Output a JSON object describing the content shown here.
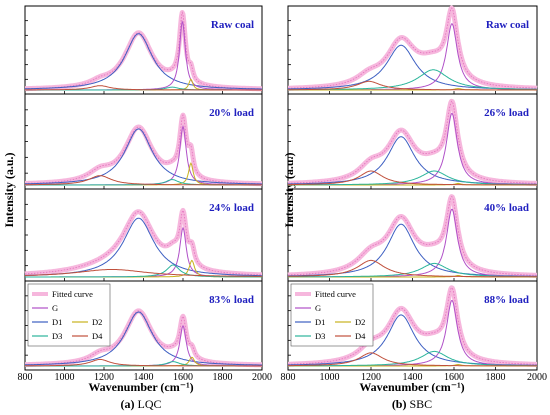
{
  "colors": {
    "fitted": "#f6b7dd",
    "fitted_line": "#e46fbd",
    "G": "#b050c8",
    "D1": "#3d5fc2",
    "D2": "#c7b21e",
    "D3": "#2bb59b",
    "D4": "#c0503c",
    "label": "#1f1fbf"
  },
  "chart_data": [
    {
      "type": "line",
      "caption_letter": "(a)",
      "caption_text": " LQC",
      "xlabel": "Wavenumber (cm⁻¹)",
      "ylabel": "Intensity (a.u.)",
      "xlim": [
        800,
        2000
      ],
      "xticks": [
        "800",
        "1000",
        "1200",
        "1400",
        "1600",
        "1800",
        "2000"
      ],
      "legend": {
        "panel": 3,
        "entries": [
          {
            "name": "Fitted curve",
            "key": "fitted"
          },
          {
            "name": "G",
            "key": "G"
          },
          {
            "name": "D1",
            "key": "D1"
          },
          {
            "name": "D2",
            "key": "D2"
          },
          {
            "name": "D3",
            "key": "D3"
          },
          {
            "name": "D4",
            "key": "D4"
          }
        ]
      },
      "panels": [
        {
          "label": "Raw coal",
          "bands": [
            {
              "name": "D1",
              "center": 1375,
              "height": 0.78,
              "width": 85
            },
            {
              "name": "G",
              "center": 1597,
              "height": 0.95,
              "width": 18
            },
            {
              "name": "D2",
              "center": 1640,
              "height": 0.15,
              "width": 12
            },
            {
              "name": "D3",
              "center": 1545,
              "height": 0.04,
              "width": 40
            },
            {
              "name": "D4",
              "center": 1180,
              "height": 0.06,
              "width": 60
            }
          ]
        },
        {
          "label": "20% load",
          "bands": [
            {
              "name": "D1",
              "center": 1375,
              "height": 0.72,
              "width": 85
            },
            {
              "name": "G",
              "center": 1600,
              "height": 0.75,
              "width": 20
            },
            {
              "name": "D2",
              "center": 1640,
              "height": 0.28,
              "width": 14
            },
            {
              "name": "D3",
              "center": 1545,
              "height": 0.07,
              "width": 40
            },
            {
              "name": "D4",
              "center": 1180,
              "height": 0.12,
              "width": 70
            }
          ]
        },
        {
          "label": "24% load",
          "bands": [
            {
              "name": "D1",
              "center": 1375,
              "height": 0.78,
              "width": 95
            },
            {
              "name": "G",
              "center": 1600,
              "height": 0.65,
              "width": 20
            },
            {
              "name": "D2",
              "center": 1645,
              "height": 0.22,
              "width": 16
            },
            {
              "name": "D3",
              "center": 1550,
              "height": 0.16,
              "width": 40
            },
            {
              "name": "D4",
              "center": 1240,
              "height": 0.1,
              "width": 220
            }
          ]
        },
        {
          "label": "83% load",
          "bands": [
            {
              "name": "D1",
              "center": 1375,
              "height": 0.74,
              "width": 85
            },
            {
              "name": "G",
              "center": 1600,
              "height": 0.55,
              "width": 20
            },
            {
              "name": "D2",
              "center": 1645,
              "height": 0.12,
              "width": 16
            },
            {
              "name": "D3",
              "center": 1550,
              "height": 0.06,
              "width": 40
            },
            {
              "name": "D4",
              "center": 1180,
              "height": 0.09,
              "width": 60
            }
          ]
        }
      ]
    },
    {
      "type": "line",
      "caption_letter": "(b)",
      "caption_text": " SBC",
      "xlabel": "Wavenumber (cm⁻¹)",
      "ylabel": "Intensity (a.u.)",
      "xlim": [
        800,
        2000
      ],
      "xticks": [
        "800",
        "1000",
        "1200",
        "1400",
        "1600",
        "1800",
        "2000"
      ],
      "legend": {
        "panel": 3,
        "entries": [
          {
            "name": "Fitted curve",
            "key": "fitted"
          },
          {
            "name": "G",
            "key": "G"
          },
          {
            "name": "D1",
            "key": "D1"
          },
          {
            "name": "D2",
            "key": "D2"
          },
          {
            "name": "D3",
            "key": "D3"
          },
          {
            "name": "D4",
            "key": "D4"
          }
        ]
      },
      "panels": [
        {
          "label": "Raw coal",
          "bands": [
            {
              "name": "D1",
              "center": 1345,
              "height": 0.62,
              "width": 85
            },
            {
              "name": "G",
              "center": 1590,
              "height": 0.92,
              "width": 32
            },
            {
              "name": "D2",
              "center": 1620,
              "height": 0.02,
              "width": 20
            },
            {
              "name": "D3",
              "center": 1500,
              "height": 0.28,
              "width": 90
            },
            {
              "name": "D4",
              "center": 1190,
              "height": 0.12,
              "width": 70
            }
          ]
        },
        {
          "label": "26% load",
          "bands": [
            {
              "name": "D1",
              "center": 1345,
              "height": 0.62,
              "width": 80
            },
            {
              "name": "G",
              "center": 1590,
              "height": 0.92,
              "width": 32
            },
            {
              "name": "D2",
              "center": 1620,
              "height": 0.02,
              "width": 20
            },
            {
              "name": "D3",
              "center": 1505,
              "height": 0.18,
              "width": 80
            },
            {
              "name": "D4",
              "center": 1200,
              "height": 0.18,
              "width": 70
            }
          ]
        },
        {
          "label": "40% load",
          "bands": [
            {
              "name": "D1",
              "center": 1345,
              "height": 0.7,
              "width": 80
            },
            {
              "name": "G",
              "center": 1590,
              "height": 0.9,
              "width": 32
            },
            {
              "name": "D2",
              "center": 1620,
              "height": 0.02,
              "width": 20
            },
            {
              "name": "D3",
              "center": 1505,
              "height": 0.18,
              "width": 80
            },
            {
              "name": "D4",
              "center": 1200,
              "height": 0.22,
              "width": 80
            }
          ]
        },
        {
          "label": "88% load",
          "bands": [
            {
              "name": "D1",
              "center": 1345,
              "height": 0.7,
              "width": 80
            },
            {
              "name": "G",
              "center": 1590,
              "height": 0.9,
              "width": 32
            },
            {
              "name": "D2",
              "center": 1620,
              "height": 0.02,
              "width": 20
            },
            {
              "name": "D3",
              "center": 1505,
              "height": 0.2,
              "width": 80
            },
            {
              "name": "D4",
              "center": 1200,
              "height": 0.18,
              "width": 70
            }
          ]
        }
      ]
    }
  ]
}
